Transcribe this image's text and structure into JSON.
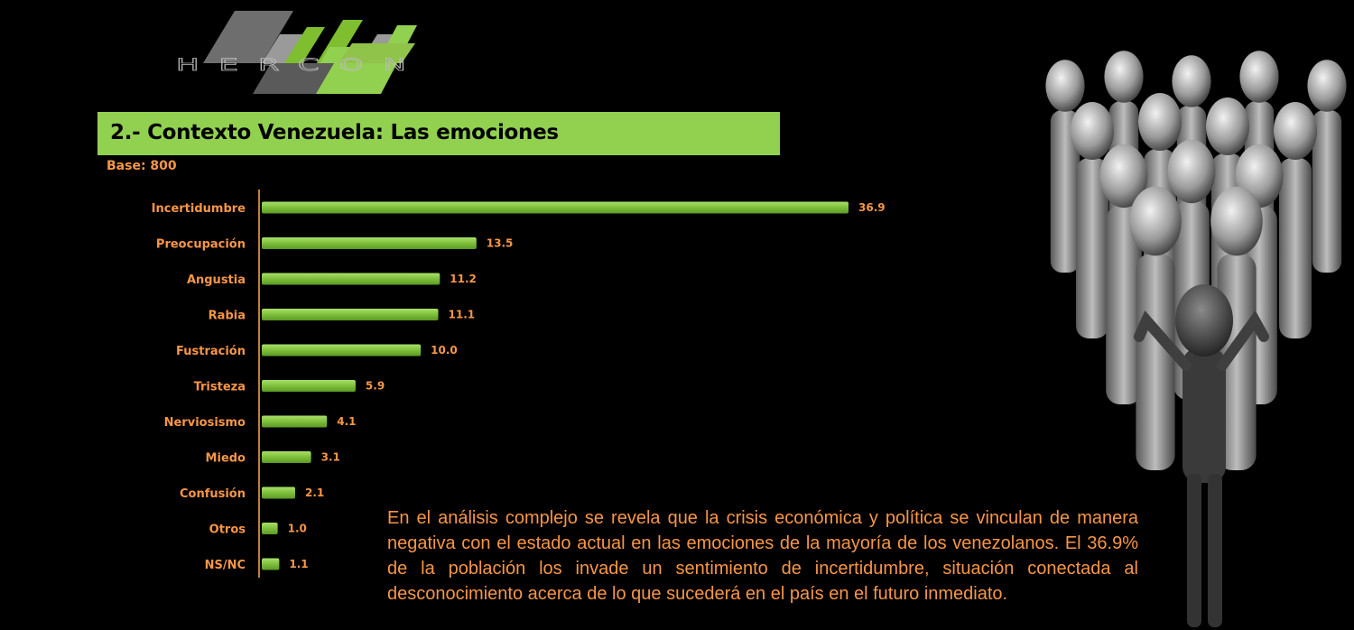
{
  "logo": {
    "text": "HERCON"
  },
  "header": {
    "title": "2.- Contexto Venezuela: Las emociones",
    "base": "Base: 800"
  },
  "colors": {
    "accent_green": "#92d050",
    "text_orange": "#f79646",
    "background": "#000000"
  },
  "chart_data": {
    "type": "bar",
    "orientation": "horizontal",
    "title": "",
    "xlabel": "",
    "ylabel": "",
    "categories": [
      "Incertidumbre",
      "Preocupación",
      "Angustia",
      "Rabia",
      "Fustración",
      "Tristeza",
      "Nerviosismo",
      "Miedo",
      "Confusión",
      "Otros",
      "NS/NC"
    ],
    "values": [
      36.9,
      13.5,
      11.2,
      11.1,
      10.0,
      5.9,
      4.1,
      3.1,
      2.1,
      1.0,
      1.1
    ],
    "value_labels": [
      "36.9",
      "13.5",
      "11.2",
      "11.1",
      "10.0",
      "5.9",
      "4.1",
      "3.1",
      "2.1",
      "1.0",
      "1.1"
    ],
    "xlim": [
      0,
      36.9
    ],
    "grid": false,
    "legend": "none",
    "bar_color": "#92d050"
  },
  "body": {
    "paragraph": "En el análisis complejo se revela que la crisis económica y política se vinculan de manera negativa con el estado actual en las emociones de la mayoría de los venezolanos. El 36.9% de la población los invade un sentimiento de incertidumbre, situación conectada al desconocimiento acerca de lo que sucederá en el país en el futuro inmediato."
  }
}
